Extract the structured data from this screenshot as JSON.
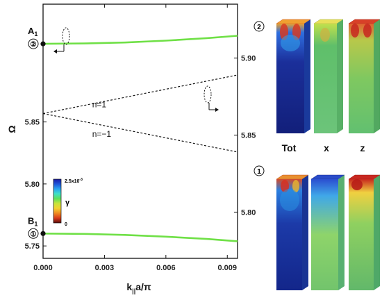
{
  "chart_data": {
    "type": "line",
    "ylabel": "Ω",
    "xlabel_main": "k",
    "xlabel_sub": "||",
    "xlabel_tail": "a/π",
    "xlim": [
      0.0,
      0.0095
    ],
    "ylim_left": [
      5.74,
      5.945
    ],
    "ylim_right": [
      5.77,
      5.935
    ],
    "x_ticks": [
      "0.000",
      "0.003",
      "0.006",
      "0.009"
    ],
    "x_tick_values": [
      0.0,
      0.003,
      0.006,
      0.009
    ],
    "y_ticks_left": [
      "5.75",
      "5.80",
      "5.85"
    ],
    "y_tick_values_left": [
      5.75,
      5.8,
      5.85
    ],
    "y_ticks_right": [
      "5.80",
      "5.85",
      "5.90"
    ],
    "y_tick_values_right": [
      5.8,
      5.85,
      5.9
    ],
    "series": [
      {
        "axis": "left",
        "style": "solid",
        "color": "#6fe046",
        "x": [
          0.0,
          0.002,
          0.004,
          0.006,
          0.008,
          0.0095
        ],
        "y": [
          5.913,
          5.9133,
          5.9141,
          5.9156,
          5.9176,
          5.9195
        ]
      },
      {
        "axis": "left",
        "style": "solid",
        "color": "#6fe046",
        "x": [
          0.0,
          0.002,
          0.004,
          0.006,
          0.008,
          0.0095
        ],
        "y": [
          5.76,
          5.7597,
          5.7589,
          5.7575,
          5.7556,
          5.7538
        ]
      },
      {
        "name": "n=1",
        "axis": "right",
        "style": "dashed",
        "color": "#111111",
        "x": [
          0.0,
          0.0095
        ],
        "y": [
          5.864,
          5.889
        ]
      },
      {
        "name": "n=−1",
        "axis": "right",
        "style": "dashed",
        "color": "#111111",
        "x": [
          0.0,
          0.0095
        ],
        "y": [
          5.864,
          5.839
        ]
      }
    ],
    "point_labels": [
      {
        "text": "A",
        "sub": "1",
        "circle": "②",
        "x": 0.0,
        "y": 5.913
      },
      {
        "text": "B",
        "sub": "1",
        "circle": "①",
        "x": 0.0,
        "y": 5.76
      }
    ],
    "line_labels": [
      {
        "text": "n=1",
        "x": 0.0024,
        "y": 5.868
      },
      {
        "text": "n=−1",
        "x": 0.0024,
        "y": 5.849
      }
    ],
    "colorbar": {
      "top_label": "2.5x10",
      "top_exp": "-3",
      "bottom_label": "0",
      "symbol": "γ",
      "colors": [
        "#1a1aa6",
        "#1f56d9",
        "#2aa3f0",
        "#3fe0c8",
        "#5ce05a",
        "#c8e43a",
        "#f3d230",
        "#f08a20",
        "#d93a1a",
        "#5a0b0b"
      ]
    },
    "field_panels": {
      "top_marker": "②",
      "bottom_marker": "①",
      "columns": [
        "Tot",
        "x",
        "z"
      ]
    }
  }
}
